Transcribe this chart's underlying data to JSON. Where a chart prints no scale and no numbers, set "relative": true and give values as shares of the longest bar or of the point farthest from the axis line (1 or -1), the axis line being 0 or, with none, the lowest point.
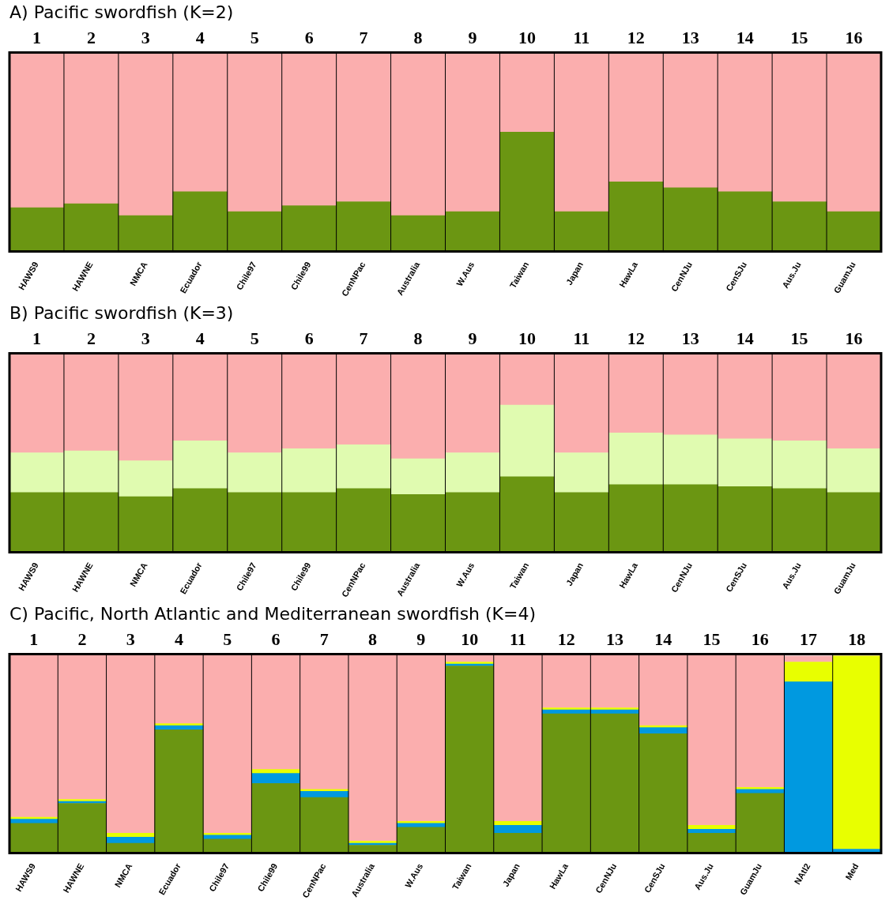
{
  "chart_data": [
    {
      "type": "bar",
      "title": "A) Pacific swordfish (K=2)",
      "stacked": true,
      "relative": true,
      "legend": false,
      "categories": [
        "HAWS9",
        "HAWNE",
        "NMCA",
        "Ecuador",
        "Chile97",
        "Chile99",
        "CenNPac",
        "Australia",
        "W.Aus",
        "Taiwan",
        "Japan",
        "HawLa",
        "CenNJu",
        "CenSJu",
        "Aus.Ju",
        "GuamJu"
      ],
      "annotations": [
        "1",
        "2",
        "3",
        "4",
        "5",
        "6",
        "7",
        "8",
        "9",
        "10",
        "11",
        "12",
        "13",
        "14",
        "15",
        "16"
      ],
      "series": [
        {
          "color": "#6b9612",
          "values": [
            0.22,
            0.24,
            0.18,
            0.3,
            0.2,
            0.23,
            0.25,
            0.18,
            0.2,
            0.6,
            0.2,
            0.35,
            0.32,
            0.3,
            0.25,
            0.2
          ]
        },
        {
          "color": "#fbaeae",
          "values": [
            0.78,
            0.76,
            0.82,
            0.7,
            0.8,
            0.77,
            0.75,
            0.82,
            0.8,
            0.4,
            0.8,
            0.65,
            0.68,
            0.7,
            0.75,
            0.8
          ]
        }
      ]
    },
    {
      "type": "bar",
      "title": "B) Pacific swordfish (K=3)",
      "stacked": true,
      "relative": true,
      "legend": false,
      "categories": [
        "HAWS9",
        "HAWNE",
        "NMCA",
        "Ecuador",
        "Chile97",
        "Chile99",
        "CenNPac",
        "Australia",
        "W.Aus",
        "Taiwan",
        "Japan",
        "HawLa",
        "CenNJu",
        "CenSJu",
        "Aus.Ju",
        "GuamJu"
      ],
      "annotations": [
        "1",
        "2",
        "3",
        "4",
        "5",
        "6",
        "7",
        "8",
        "9",
        "10",
        "11",
        "12",
        "13",
        "14",
        "15",
        "16"
      ],
      "series": [
        {
          "color": "#6b9612",
          "values": [
            0.3,
            0.3,
            0.28,
            0.32,
            0.3,
            0.3,
            0.32,
            0.29,
            0.3,
            0.38,
            0.3,
            0.34,
            0.34,
            0.33,
            0.32,
            0.3
          ]
        },
        {
          "color": "#e0fbb0",
          "values": [
            0.2,
            0.21,
            0.18,
            0.24,
            0.2,
            0.22,
            0.22,
            0.18,
            0.2,
            0.36,
            0.2,
            0.26,
            0.25,
            0.24,
            0.24,
            0.22
          ]
        },
        {
          "color": "#fbaeae",
          "values": [
            0.5,
            0.49,
            0.54,
            0.44,
            0.5,
            0.48,
            0.46,
            0.53,
            0.5,
            0.26,
            0.5,
            0.4,
            0.41,
            0.43,
            0.44,
            0.48
          ]
        }
      ]
    },
    {
      "type": "bar",
      "title": "C) Pacific, North Atlantic and Mediterranean swordfish (K=4)",
      "stacked": true,
      "relative": true,
      "legend": false,
      "categories": [
        "HAWS9",
        "HAWNE",
        "NMCA",
        "Ecuador",
        "Chile97",
        "Chile99",
        "CenNPac",
        "Australia",
        "W.Aus",
        "Taiwan",
        "Japan",
        "HawLa",
        "CenNJu",
        "CenSJu",
        "Aus.Ju",
        "GuamJu",
        "NAtl2",
        "Med"
      ],
      "annotations": [
        "1",
        "2",
        "3",
        "4",
        "5",
        "6",
        "7",
        "8",
        "9",
        "10",
        "11",
        "12",
        "13",
        "14",
        "15",
        "16",
        "17",
        "18"
      ],
      "series": [
        {
          "color": "#6b9612",
          "values": [
            0.15,
            0.25,
            0.05,
            0.62,
            0.07,
            0.35,
            0.28,
            0.04,
            0.13,
            0.94,
            0.1,
            0.7,
            0.7,
            0.6,
            0.1,
            0.3,
            null,
            null
          ]
        },
        {
          "color": "#0099e0",
          "values": [
            0.02,
            0.01,
            0.03,
            0.02,
            0.02,
            0.05,
            0.03,
            0.01,
            0.02,
            0.01,
            0.04,
            0.02,
            0.02,
            0.03,
            0.02,
            0.02,
            0.86,
            0.02
          ]
        },
        {
          "color": "#e8ff00",
          "values": [
            0.01,
            0.01,
            0.02,
            0.01,
            0.01,
            0.02,
            0.01,
            0.01,
            0.01,
            0.01,
            0.02,
            0.01,
            0.01,
            0.01,
            0.02,
            0.01,
            0.1,
            0.97
          ]
        },
        {
          "color": "#fbaeae",
          "values": [
            0.82,
            0.73,
            0.9,
            0.35,
            0.9,
            0.58,
            0.68,
            0.94,
            0.84,
            0.04,
            0.84,
            0.27,
            0.27,
            0.36,
            0.86,
            0.67,
            0.03,
            0
          ]
        }
      ]
    }
  ]
}
